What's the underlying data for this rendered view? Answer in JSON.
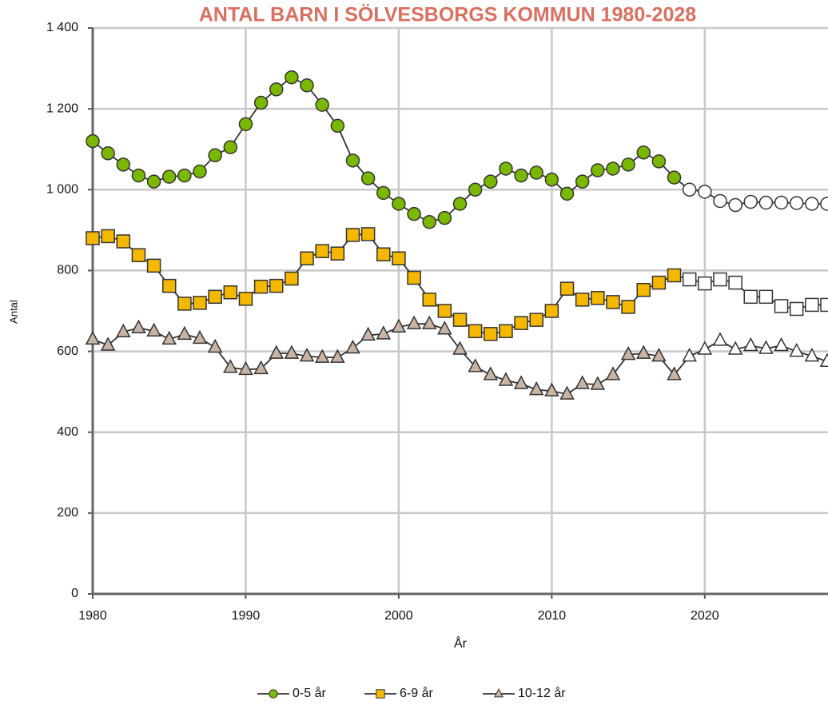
{
  "chart_data": {
    "type": "line",
    "title": "ANTAL BARN I SÖLVESBORGS KOMMUN 1980-2028",
    "x_label": "År",
    "y_label": "Antal",
    "x": [
      1980,
      1981,
      1982,
      1983,
      1984,
      1985,
      1986,
      1987,
      1988,
      1989,
      1990,
      1991,
      1992,
      1993,
      1994,
      1995,
      1996,
      1997,
      1998,
      1999,
      2000,
      2001,
      2002,
      2003,
      2004,
      2005,
      2006,
      2007,
      2008,
      2009,
      2010,
      2011,
      2012,
      2013,
      2014,
      2015,
      2016,
      2017,
      2018,
      2019,
      2020,
      2021,
      2022,
      2023,
      2024,
      2025,
      2026,
      2027,
      2028
    ],
    "projected_x_from": 2019,
    "series": [
      {
        "name": "0-5 år",
        "color": "#7ab800",
        "marker": "circle",
        "values": [
          1120,
          1090,
          1062,
          1035,
          1020,
          1032,
          1035,
          1045,
          1085,
          1105,
          1162,
          1215,
          1248,
          1278,
          1258,
          1210,
          1158,
          1072,
          1028,
          992,
          965,
          940,
          920,
          930,
          965,
          1000,
          1020,
          1052,
          1035,
          1042,
          1025,
          990,
          1020,
          1048,
          1052,
          1062,
          1092,
          1070,
          1030,
          1000,
          995,
          972,
          962,
          970,
          968,
          968,
          967,
          965,
          965
        ]
      },
      {
        "name": "6-9 år",
        "color": "#f5b800",
        "marker": "square",
        "values": [
          880,
          885,
          872,
          838,
          812,
          762,
          718,
          720,
          735,
          746,
          730,
          760,
          762,
          780,
          830,
          848,
          842,
          888,
          890,
          840,
          830,
          782,
          728,
          700,
          678,
          650,
          643,
          650,
          670,
          678,
          700,
          755,
          728,
          732,
          722,
          710,
          752,
          770,
          788,
          778,
          768,
          778,
          770,
          735,
          735,
          712,
          705,
          715,
          715
        ]
      },
      {
        "name": "10-12 år",
        "color": "#c8b4a4",
        "marker": "triangle",
        "values": [
          630,
          615,
          648,
          658,
          650,
          630,
          642,
          632,
          610,
          560,
          555,
          557,
          595,
          595,
          588,
          585,
          585,
          608,
          640,
          643,
          660,
          668,
          668,
          655,
          605,
          562,
          542,
          528,
          520,
          505,
          502,
          494,
          520,
          518,
          542,
          592,
          595,
          588,
          542,
          588,
          605,
          627,
          605,
          614,
          607,
          614,
          600,
          588,
          575
        ]
      }
    ],
    "xlim": [
      1980,
      2028
    ],
    "ylim": [
      0,
      1400
    ],
    "xticks": [
      1980,
      1990,
      2000,
      2010,
      2020
    ],
    "yticks": [
      0,
      200,
      400,
      600,
      800,
      {
        "value": 1000,
        "label": "1 000"
      },
      {
        "value": 1200,
        "label": "1 200"
      },
      {
        "value": 1400,
        "label": "1 400"
      }
    ],
    "grid": true
  }
}
